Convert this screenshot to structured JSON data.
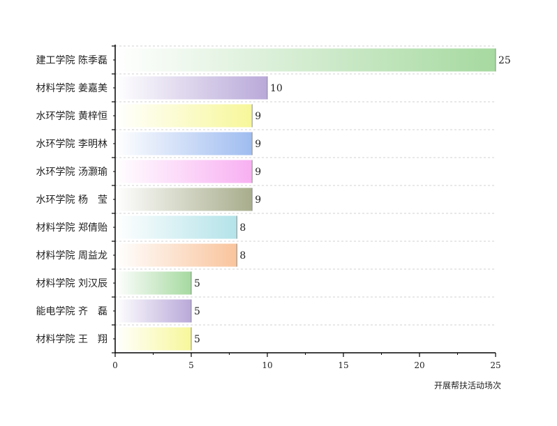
{
  "chart_data": {
    "type": "bar",
    "orientation": "horizontal",
    "xlabel": "开展帮扶活动场次",
    "xlim": [
      0,
      25
    ],
    "xticks": [
      0,
      5,
      10,
      15,
      20,
      25
    ],
    "grid": "horizontal dashed",
    "categories": [
      "建工学院 陈季磊",
      "材料学院 姜嘉美",
      "水环学院 黄梓恒",
      "水环学院 李明林",
      "水环学院 汤灏瑜",
      "水环学院 杨　莹",
      "材料学院 郑倩贻",
      "材料学院 周益龙",
      "材料学院 刘汉辰",
      "能电学院 齐　磊",
      "材料学院 王　翔"
    ],
    "values": [
      25,
      10,
      9,
      9,
      9,
      9,
      8,
      8,
      5,
      5,
      5
    ],
    "colors": [
      "#a6d9a0",
      "#b9a9d9",
      "#f7f79a",
      "#9fbcf0",
      "#f8b0f2",
      "#a8ad8c",
      "#b3e3e9",
      "#f9c49c",
      "#a6d9a0",
      "#b9a9d9",
      "#f7f79a"
    ]
  }
}
